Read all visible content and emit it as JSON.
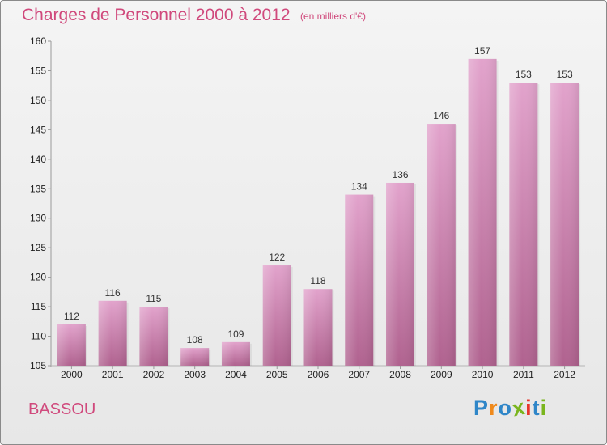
{
  "title": "Charges de Personnel 2000 à 2012",
  "subtitle": "(en milliers d'€)",
  "commune": "BASSOU",
  "logo": {
    "text": "Proxiti",
    "letters": [
      {
        "ch": "P",
        "color": "#2f86c8"
      },
      {
        "ch": "r",
        "color": "#f08a1c"
      },
      {
        "ch": "o",
        "color": "#2f86c8"
      },
      {
        "ch": "x",
        "color": "#7ab51d"
      },
      {
        "ch": "i",
        "color": "#e8362b"
      },
      {
        "ch": "t",
        "color": "#2f86c8"
      },
      {
        "ch": "i",
        "color": "#7ab51d"
      }
    ]
  },
  "colors": {
    "accent": "#d0497c",
    "bar_top": "#e2a3cc",
    "bar_bottom": "#b0628f",
    "bar_label": "#333333",
    "tick_label": "#222222"
  },
  "chart_data": {
    "type": "bar",
    "categories": [
      "2000",
      "2001",
      "2002",
      "2003",
      "2004",
      "2005",
      "2006",
      "2007",
      "2008",
      "2009",
      "2010",
      "2011",
      "2012"
    ],
    "values": [
      112,
      116,
      115,
      108,
      109,
      122,
      118,
      134,
      136,
      146,
      157,
      153,
      153
    ],
    "title": "Charges de Personnel 2000 à 2012",
    "subtitle": "(en milliers d'€)",
    "xlabel": "",
    "ylabel": "",
    "ylim": [
      105,
      160
    ],
    "yticks": [
      105,
      110,
      115,
      120,
      125,
      130,
      135,
      140,
      145,
      150,
      155,
      160
    ],
    "grid": false,
    "legend": "none"
  }
}
